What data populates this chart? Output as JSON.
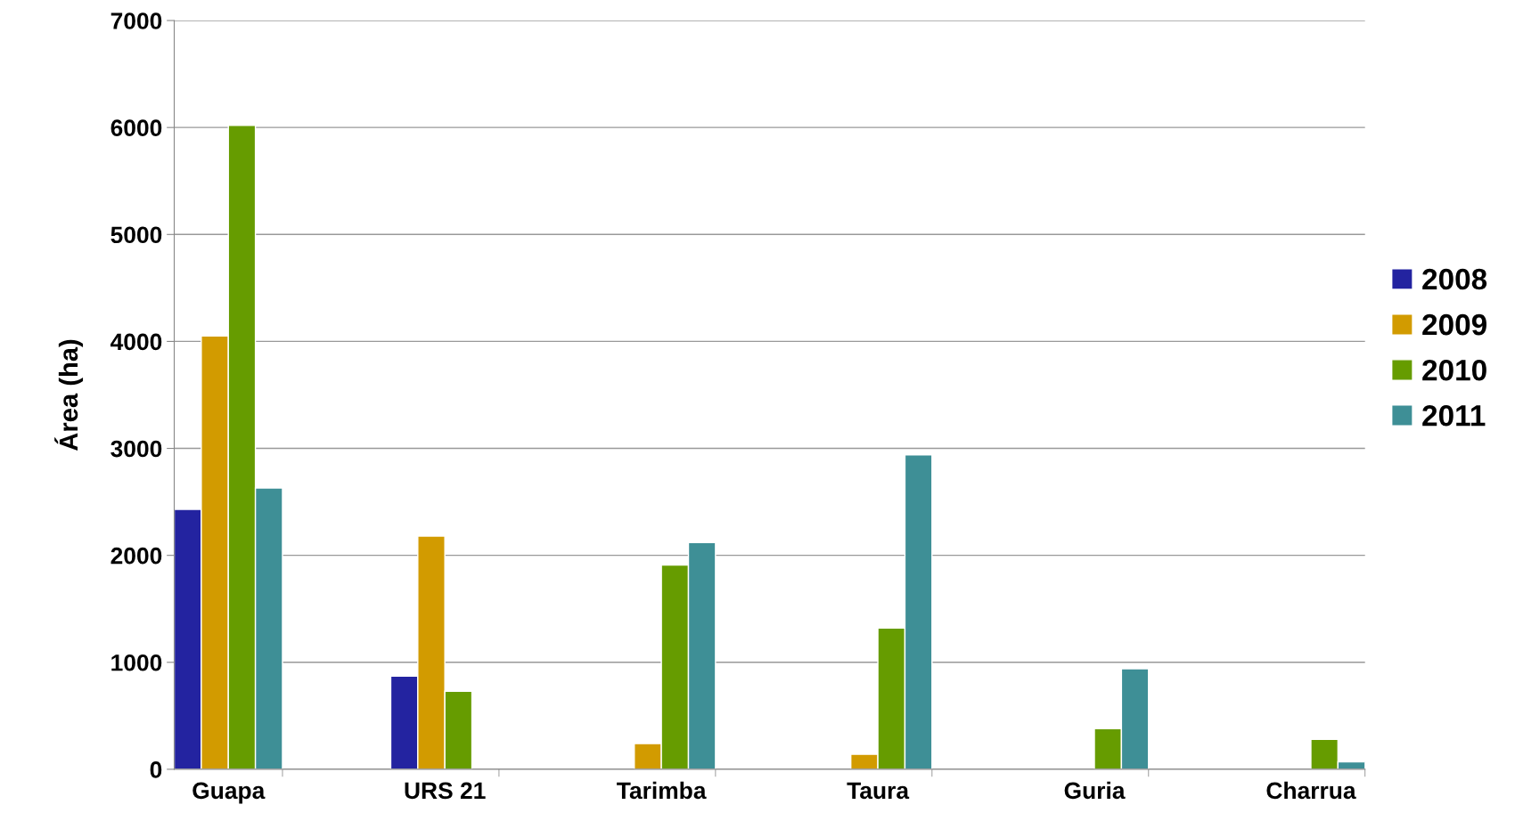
{
  "chart_data": {
    "type": "bar",
    "ylabel": "Área (ha)",
    "categories": [
      "Guapa",
      "URS 21",
      "Tarimba",
      "Taura",
      "Guria",
      "Charrua"
    ],
    "series": [
      {
        "name": "2008",
        "color": "#2323a0",
        "values": [
          2430,
          870,
          null,
          null,
          null,
          null
        ]
      },
      {
        "name": "2009",
        "color": "#d29b00",
        "values": [
          4050,
          2180,
          240,
          140,
          null,
          null
        ]
      },
      {
        "name": "2010",
        "color": "#669c00",
        "values": [
          6020,
          730,
          1910,
          1320,
          380,
          280
        ]
      },
      {
        "name": "2011",
        "color": "#3e8f96",
        "values": [
          2630,
          null,
          2120,
          2940,
          940,
          70
        ]
      }
    ],
    "ylim": [
      0,
      7000
    ],
    "yticks": [
      0,
      1000,
      2000,
      3000,
      4000,
      5000,
      6000,
      7000
    ],
    "grid": "y",
    "legend": "right"
  }
}
